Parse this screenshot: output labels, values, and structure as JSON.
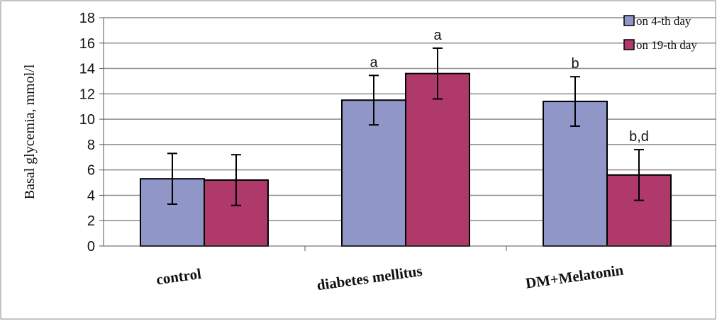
{
  "chart_data": {
    "type": "bar",
    "ylabel": "Basal glycemia,  mmol/l",
    "xlabel": "",
    "ylim": [
      0,
      18
    ],
    "yticks": [
      0,
      2,
      4,
      6,
      8,
      10,
      12,
      14,
      16,
      18
    ],
    "grid": true,
    "legend_position": "top-right",
    "categories": [
      "control",
      "diabetes mellitus",
      "DM+Melatonin"
    ],
    "series": [
      {
        "name": "on 4-th day",
        "color": "#9196c9",
        "values": [
          5.3,
          11.5,
          11.4
        ],
        "errors": [
          2.0,
          1.95,
          1.95
        ],
        "annotations": [
          "",
          "a",
          "b"
        ]
      },
      {
        "name": "on 19-th day",
        "color": "#b0396b",
        "values": [
          5.2,
          13.6,
          5.6
        ],
        "errors": [
          2.0,
          2.0,
          2.0
        ],
        "annotations": [
          "",
          "a",
          "b,d"
        ]
      }
    ]
  }
}
